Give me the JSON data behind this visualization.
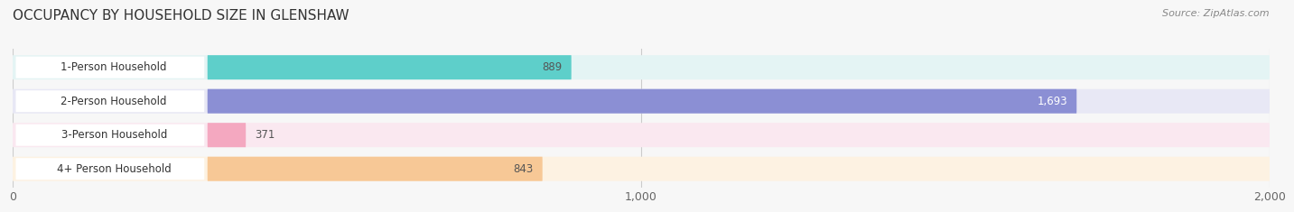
{
  "title": "OCCUPANCY BY HOUSEHOLD SIZE IN GLENSHAW",
  "source": "Source: ZipAtlas.com",
  "categories": [
    "1-Person Household",
    "2-Person Household",
    "3-Person Household",
    "4+ Person Household"
  ],
  "values": [
    889,
    1693,
    371,
    843
  ],
  "bar_colors": [
    "#5ecfca",
    "#8b8fd4",
    "#f4a8c0",
    "#f7c896"
  ],
  "bg_colors": [
    "#e4f4f4",
    "#e8e8f5",
    "#fae8f0",
    "#fdf2e2"
  ],
  "label_bg": "#ffffff",
  "value_colors": [
    "#555555",
    "#ffffff",
    "#555555",
    "#555555"
  ],
  "xlim": [
    0,
    2000
  ],
  "xticks": [
    0,
    1000,
    2000
  ],
  "xtick_labels": [
    "0",
    "1,000",
    "2,000"
  ],
  "fig_width": 14.06,
  "fig_height": 2.33,
  "dpi": 100,
  "bg_color": "#f7f7f7"
}
